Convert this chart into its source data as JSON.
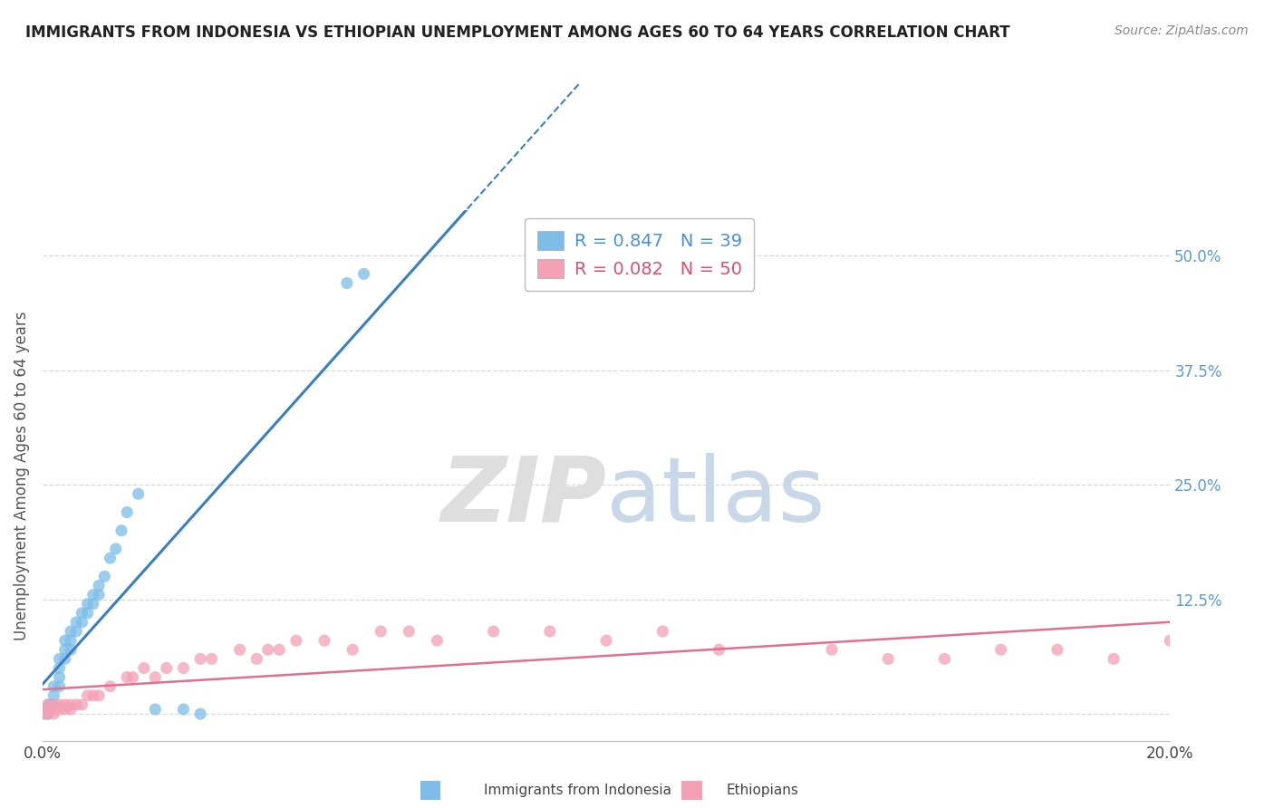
{
  "title": "IMMIGRANTS FROM INDONESIA VS ETHIOPIAN UNEMPLOYMENT AMONG AGES 60 TO 64 YEARS CORRELATION CHART",
  "source": "Source: ZipAtlas.com",
  "ylabel": "Unemployment Among Ages 60 to 64 years",
  "xlim": [
    0.0,
    0.2
  ],
  "ylim": [
    -0.03,
    0.55
  ],
  "r_indonesia": 0.847,
  "n_indonesia": 39,
  "r_ethiopian": 0.082,
  "n_ethiopian": 50,
  "indonesia_color": "#7dbde8",
  "ethiopian_color": "#f4a0b5",
  "indonesia_line_color": "#3a7fc1",
  "ethiopian_line_color": "#e07090",
  "background_color": "#ffffff",
  "grid_color": "#d8d8d8",
  "watermark_zip": "ZIP",
  "watermark_atlas": "atlas",
  "indo_x": [
    0.0005,
    0.001,
    0.001,
    0.001,
    0.0015,
    0.002,
    0.002,
    0.002,
    0.003,
    0.003,
    0.003,
    0.003,
    0.004,
    0.004,
    0.004,
    0.005,
    0.005,
    0.005,
    0.006,
    0.006,
    0.007,
    0.007,
    0.008,
    0.008,
    0.009,
    0.009,
    0.01,
    0.01,
    0.011,
    0.012,
    0.013,
    0.014,
    0.015,
    0.017,
    0.02,
    0.025,
    0.028,
    0.054,
    0.057
  ],
  "indo_y": [
    0.0,
    0.0,
    0.005,
    0.01,
    0.01,
    0.01,
    0.02,
    0.03,
    0.03,
    0.04,
    0.05,
    0.06,
    0.06,
    0.07,
    0.08,
    0.07,
    0.08,
    0.09,
    0.09,
    0.1,
    0.1,
    0.11,
    0.11,
    0.12,
    0.12,
    0.13,
    0.13,
    0.14,
    0.15,
    0.17,
    0.18,
    0.2,
    0.22,
    0.24,
    0.005,
    0.005,
    0.0,
    0.47,
    0.48
  ],
  "eth_x": [
    0.0,
    0.0,
    0.001,
    0.001,
    0.001,
    0.002,
    0.002,
    0.002,
    0.003,
    0.003,
    0.004,
    0.004,
    0.005,
    0.005,
    0.006,
    0.007,
    0.008,
    0.009,
    0.01,
    0.012,
    0.015,
    0.016,
    0.018,
    0.02,
    0.022,
    0.025,
    0.028,
    0.03,
    0.035,
    0.038,
    0.04,
    0.042,
    0.045,
    0.05,
    0.055,
    0.06,
    0.065,
    0.07,
    0.08,
    0.09,
    0.1,
    0.11,
    0.12,
    0.14,
    0.15,
    0.16,
    0.17,
    0.18,
    0.19,
    0.2
  ],
  "eth_y": [
    0.0,
    0.005,
    0.0,
    0.005,
    0.01,
    0.0,
    0.005,
    0.01,
    0.005,
    0.01,
    0.005,
    0.01,
    0.005,
    0.01,
    0.01,
    0.01,
    0.02,
    0.02,
    0.02,
    0.03,
    0.04,
    0.04,
    0.05,
    0.04,
    0.05,
    0.05,
    0.06,
    0.06,
    0.07,
    0.06,
    0.07,
    0.07,
    0.08,
    0.08,
    0.07,
    0.09,
    0.09,
    0.08,
    0.09,
    0.09,
    0.08,
    0.09,
    0.07,
    0.07,
    0.06,
    0.06,
    0.07,
    0.07,
    0.06,
    0.08
  ]
}
